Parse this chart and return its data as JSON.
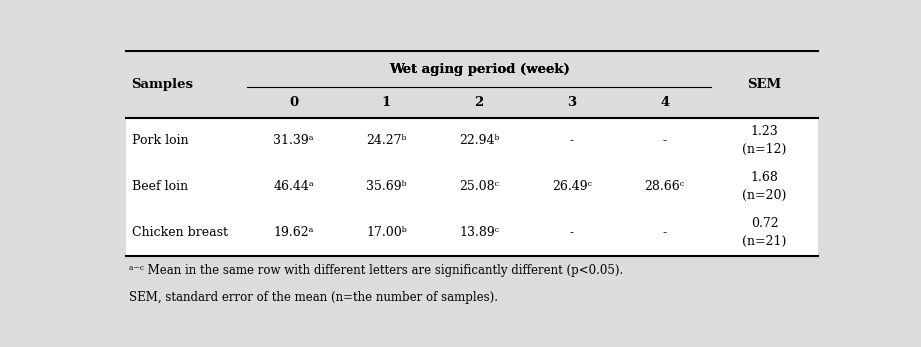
{
  "title": "Wet aging period (week)",
  "col_headers": [
    "0",
    "1",
    "2",
    "3",
    "4"
  ],
  "sem_label": "SEM",
  "samples_label": "Samples",
  "data": {
    "Pork loin": {
      "values": [
        "31.39ᵃ",
        "24.27ᵇ",
        "22.94ᵇ",
        "-",
        "-"
      ],
      "sem": "1.23\n(n=12)"
    },
    "Beef loin": {
      "values": [
        "46.44ᵃ",
        "35.69ᵇ",
        "25.08ᶜ",
        "26.49ᶜ",
        "28.66ᶜ"
      ],
      "sem": "1.68\n(n=20)"
    },
    "Chicken breast": {
      "values": [
        "19.62ᵃ",
        "17.00ᵇ",
        "13.89ᶜ",
        "-",
        "-"
      ],
      "sem": "0.72\n(n=21)"
    }
  },
  "row_order": [
    "Pork loin",
    "Beef loin",
    "Chicken breast"
  ],
  "footnotes": [
    "ᵃ⁻ᶜ Mean in the same row with different letters are significantly different (p<0.05).",
    "SEM, standard error of the mean (n=the number of samples)."
  ],
  "bg_color": "#dcdcdc",
  "body_color": "#ffffff",
  "text_color": "#000000",
  "font_size": 9,
  "font_size_header": 9.5
}
